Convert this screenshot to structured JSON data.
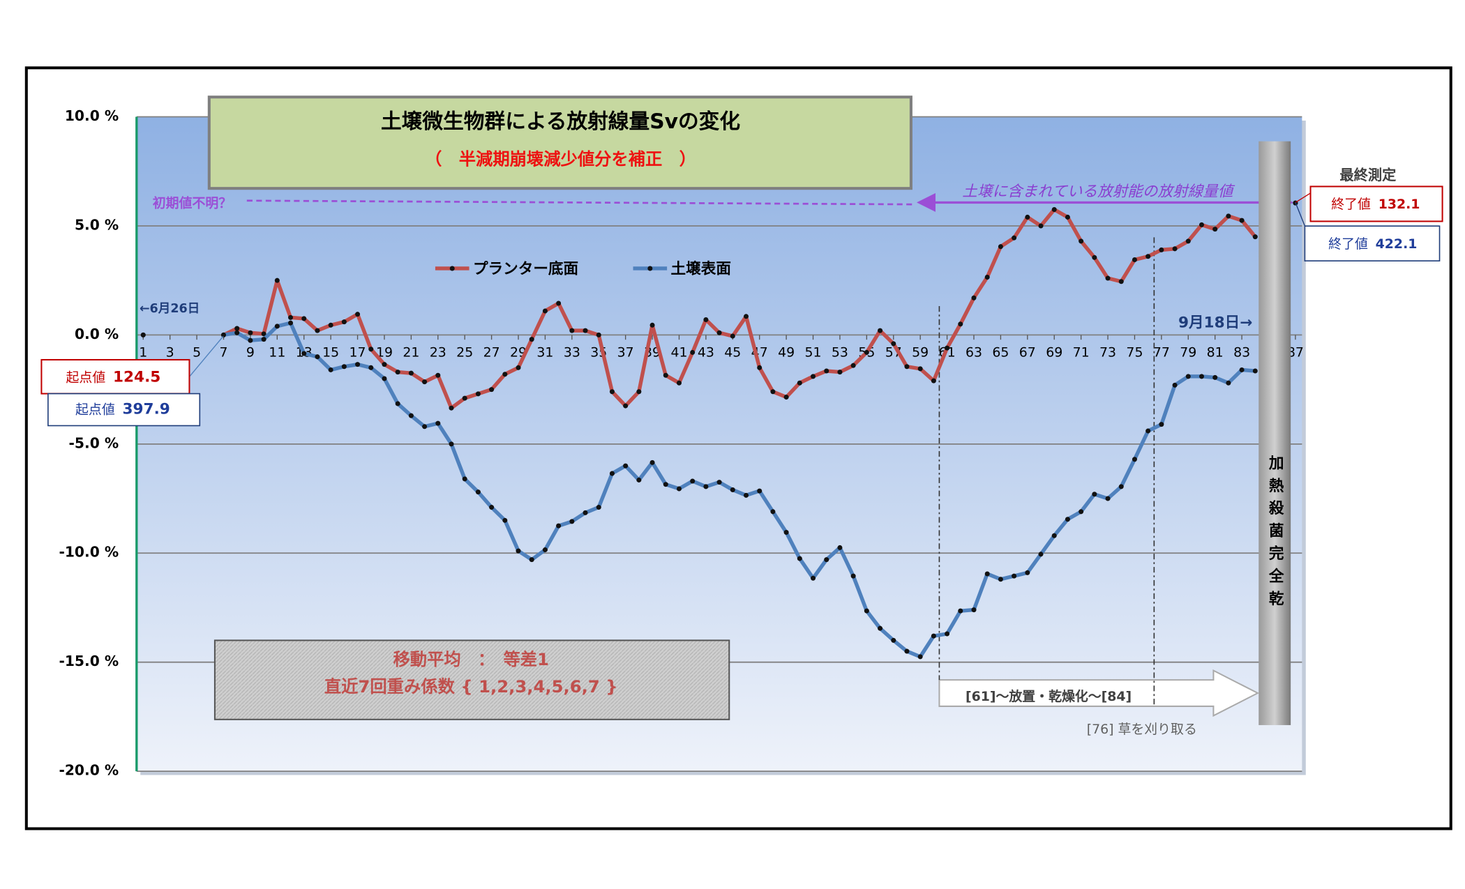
{
  "chart_data": {
    "type": "line",
    "title": "土壌微生物群による放射線量Svの変化",
    "subtitle": "（　半減期崩壊減少値分を補正　）",
    "x": [
      1,
      2,
      3,
      4,
      5,
      6,
      7,
      8,
      9,
      10,
      11,
      12,
      13,
      14,
      15,
      16,
      17,
      18,
      19,
      20,
      21,
      22,
      23,
      24,
      25,
      26,
      27,
      28,
      29,
      30,
      31,
      32,
      33,
      34,
      35,
      36,
      37,
      38,
      39,
      40,
      41,
      42,
      43,
      44,
      45,
      46,
      47,
      48,
      49,
      50,
      51,
      52,
      53,
      54,
      55,
      56,
      57,
      58,
      59,
      60,
      61,
      62,
      63,
      64,
      65,
      66,
      67,
      68,
      69,
      70,
      71,
      72,
      73,
      74,
      75,
      76,
      77,
      78,
      79,
      80,
      81,
      82,
      83,
      84,
      85,
      86,
      87
    ],
    "xlim": [
      1,
      87
    ],
    "xticks": [
      1,
      3,
      5,
      7,
      9,
      11,
      13,
      15,
      17,
      19,
      21,
      23,
      25,
      27,
      29,
      31,
      33,
      35,
      37,
      39,
      41,
      43,
      45,
      47,
      49,
      51,
      53,
      55,
      57,
      59,
      61,
      63,
      65,
      67,
      69,
      71,
      73,
      75,
      77,
      79,
      81,
      83,
      85,
      87
    ],
    "ylim": [
      -20,
      10
    ],
    "yticks": [
      {
        "value": -20,
        "label": "-20.0 %"
      },
      {
        "value": -15,
        "label": "-15.0 %"
      },
      {
        "value": -10,
        "label": "-10.0 %"
      },
      {
        "value": -5,
        "label": "-5.0 %"
      },
      {
        "value": 0,
        "label": "0.0 %"
      },
      {
        "value": 5,
        "label": "5.0 %"
      },
      {
        "value": 10,
        "label": "10.0 %"
      }
    ],
    "grid": true,
    "series": [
      {
        "name": "プランター底面",
        "color": "#c0504d",
        "values": [
          0,
          null,
          null,
          null,
          null,
          null,
          0,
          0.3,
          0.1,
          0.05,
          2.5,
          0.8,
          0.75,
          0.2,
          0.45,
          0.6,
          0.95,
          -0.65,
          -1.35,
          -1.7,
          -1.75,
          -2.15,
          -1.85,
          -3.35,
          -2.9,
          -2.7,
          -2.5,
          -1.8,
          -1.5,
          -0.2,
          1.1,
          1.45,
          0.2,
          0.2,
          0,
          -2.6,
          -3.25,
          -2.6,
          0.45,
          -1.85,
          -2.2,
          -0.8,
          0.7,
          0.1,
          -0.05,
          0.85,
          -1.5,
          -2.6,
          -2.85,
          -2.2,
          -1.9,
          -1.65,
          -1.7,
          -1.4,
          -0.8,
          0.2,
          -0.4,
          -1.45,
          -1.55,
          -2.1,
          -0.6,
          0.5,
          1.7,
          2.65,
          4.05,
          4.45,
          5.4,
          5.0,
          5.75,
          5.4,
          4.3,
          3.55,
          2.6,
          2.45,
          3.45,
          3.6,
          3.9,
          3.95,
          4.3,
          5.05,
          4.85,
          5.45,
          5.25,
          4.5,
          null,
          null,
          6.05
        ]
      },
      {
        "name": "土壌表面",
        "color": "#4f81bd",
        "values": [
          0,
          null,
          null,
          null,
          null,
          null,
          0,
          0.1,
          -0.25,
          -0.2,
          0.4,
          0.55,
          -0.85,
          -1.0,
          -1.6,
          -1.45,
          -1.35,
          -1.5,
          -2.0,
          -3.15,
          -3.7,
          -4.2,
          -4.05,
          -5.0,
          -6.6,
          -7.2,
          -7.9,
          -8.5,
          -9.9,
          -10.3,
          -9.85,
          -8.75,
          -8.55,
          -8.15,
          -7.9,
          -6.35,
          -6.0,
          -6.65,
          -5.85,
          -6.85,
          -7.05,
          -6.7,
          -6.95,
          -6.75,
          -7.1,
          -7.35,
          -7.15,
          -8.1,
          -9.05,
          -10.25,
          -11.15,
          -10.3,
          -9.75,
          -11.05,
          -12.65,
          -13.45,
          -14.0,
          -14.5,
          -14.75,
          -13.8,
          -13.7,
          -12.65,
          -12.6,
          -10.95,
          -11.2,
          -11.05,
          -10.9,
          -10.05,
          -9.2,
          -8.45,
          -8.1,
          -7.3,
          -7.5,
          -6.95,
          -5.7,
          -4.4,
          -4.1,
          -2.3,
          -1.9,
          -1.9,
          -1.95,
          -2.2,
          -1.6,
          -1.65,
          null,
          null,
          6.05
        ]
      }
    ],
    "start_date": "←6月26日",
    "end_date": "9月18日→",
    "initial_note": "初期値不明？",
    "range_note": "土壌に含まれている放射能の放射線量値",
    "final_label": "最終測定",
    "start_values": [
      {
        "label": "起点値",
        "value": 124.5
      },
      {
        "label": "起点値",
        "value": 397.9
      }
    ],
    "end_values": [
      {
        "label": "終了値",
        "value": 132.1
      },
      {
        "label": "終了値",
        "value": 422.1
      }
    ],
    "method_lines": [
      "移動平均　：　等差1",
      "直近7回重み係数 { 1,2,3,4,5,6,7 }"
    ],
    "period_note": "[61]～放置・乾燥化～[84]",
    "cut_note": "[76] 草を刈り取る",
    "bar_label": "加熱殺菌完全乾"
  }
}
